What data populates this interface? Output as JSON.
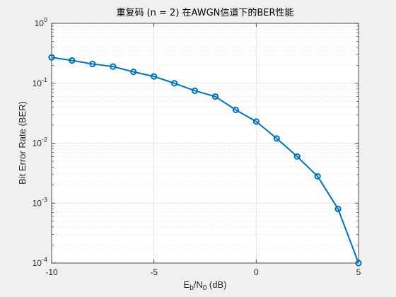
{
  "chart_data": {
    "type": "line",
    "title": "重复码 (n = 2) 在AWGN信道下的BER性能",
    "xlabel": {
      "base": "E",
      "sub1": "b",
      "mid": "/N",
      "sub2": "0",
      "tail": " (dB)"
    },
    "ylabel": "Bit Error Rate (BER)",
    "xlim": [
      -10,
      5
    ],
    "ylim": [
      0.0001,
      1
    ],
    "yscale": "log",
    "grid": true,
    "minor_grid": true,
    "xticks": [
      -10,
      -5,
      0,
      5
    ],
    "xtick_labels": [
      "-10",
      "-5",
      "0",
      "5"
    ],
    "yticks": [
      0.0001,
      0.001,
      0.01,
      0.1,
      1
    ],
    "ytick_labels": [
      {
        "base": "10",
        "exp": "-4"
      },
      {
        "base": "10",
        "exp": "-3"
      },
      {
        "base": "10",
        "exp": "-2"
      },
      {
        "base": "10",
        "exp": "-1"
      },
      {
        "base": "10",
        "exp": "0"
      }
    ],
    "series": [
      {
        "color": "#0072bd",
        "marker": "circle",
        "x": [
          -10,
          -9,
          -8,
          -7,
          -6,
          -5,
          -4,
          -3,
          -2,
          -1,
          0,
          1,
          2,
          3,
          4,
          5
        ],
        "y": [
          0.27,
          0.24,
          0.21,
          0.19,
          0.155,
          0.13,
          0.1,
          0.075,
          0.06,
          0.036,
          0.023,
          0.012,
          0.006,
          0.0028,
          0.0008,
          0.0001
        ]
      }
    ]
  }
}
